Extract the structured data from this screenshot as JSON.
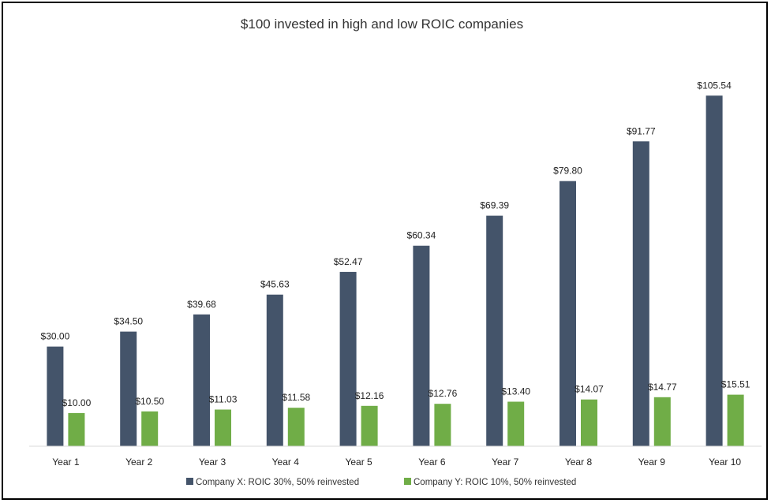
{
  "chart_data": {
    "type": "bar",
    "title": "$100 invested in high and low ROIC companies",
    "xlabel": "",
    "ylabel": "",
    "categories": [
      "Year 1",
      "Year 2",
      "Year 3",
      "Year 4",
      "Year 5",
      "Year 6",
      "Year 7",
      "Year 8",
      "Year 9",
      "Year 10"
    ],
    "ylim": [
      0,
      115
    ],
    "grid": false,
    "legend_position": "bottom",
    "series": [
      {
        "name": "Company X: ROIC 30%, 50% reinvested",
        "color": "#44546A",
        "values": [
          30.0,
          34.5,
          39.68,
          45.63,
          52.47,
          60.34,
          69.39,
          79.8,
          91.77,
          105.54
        ],
        "labels": [
          "$30.00",
          "$34.50",
          "$39.68",
          "$45.63",
          "$52.47",
          "$60.34",
          "$69.39",
          "$79.80",
          "$91.77",
          "$105.54"
        ]
      },
      {
        "name": "Company Y: ROIC 10%, 50% reinvested",
        "color": "#70AD47",
        "values": [
          10.0,
          10.5,
          11.03,
          11.58,
          12.16,
          12.76,
          13.4,
          14.07,
          14.77,
          15.51
        ],
        "labels": [
          "$10.00",
          "$10.50",
          "$11.03",
          "$11.58",
          "$12.16",
          "$12.76",
          "$13.40",
          "$14.07",
          "$14.77",
          "$15.51"
        ]
      }
    ]
  }
}
